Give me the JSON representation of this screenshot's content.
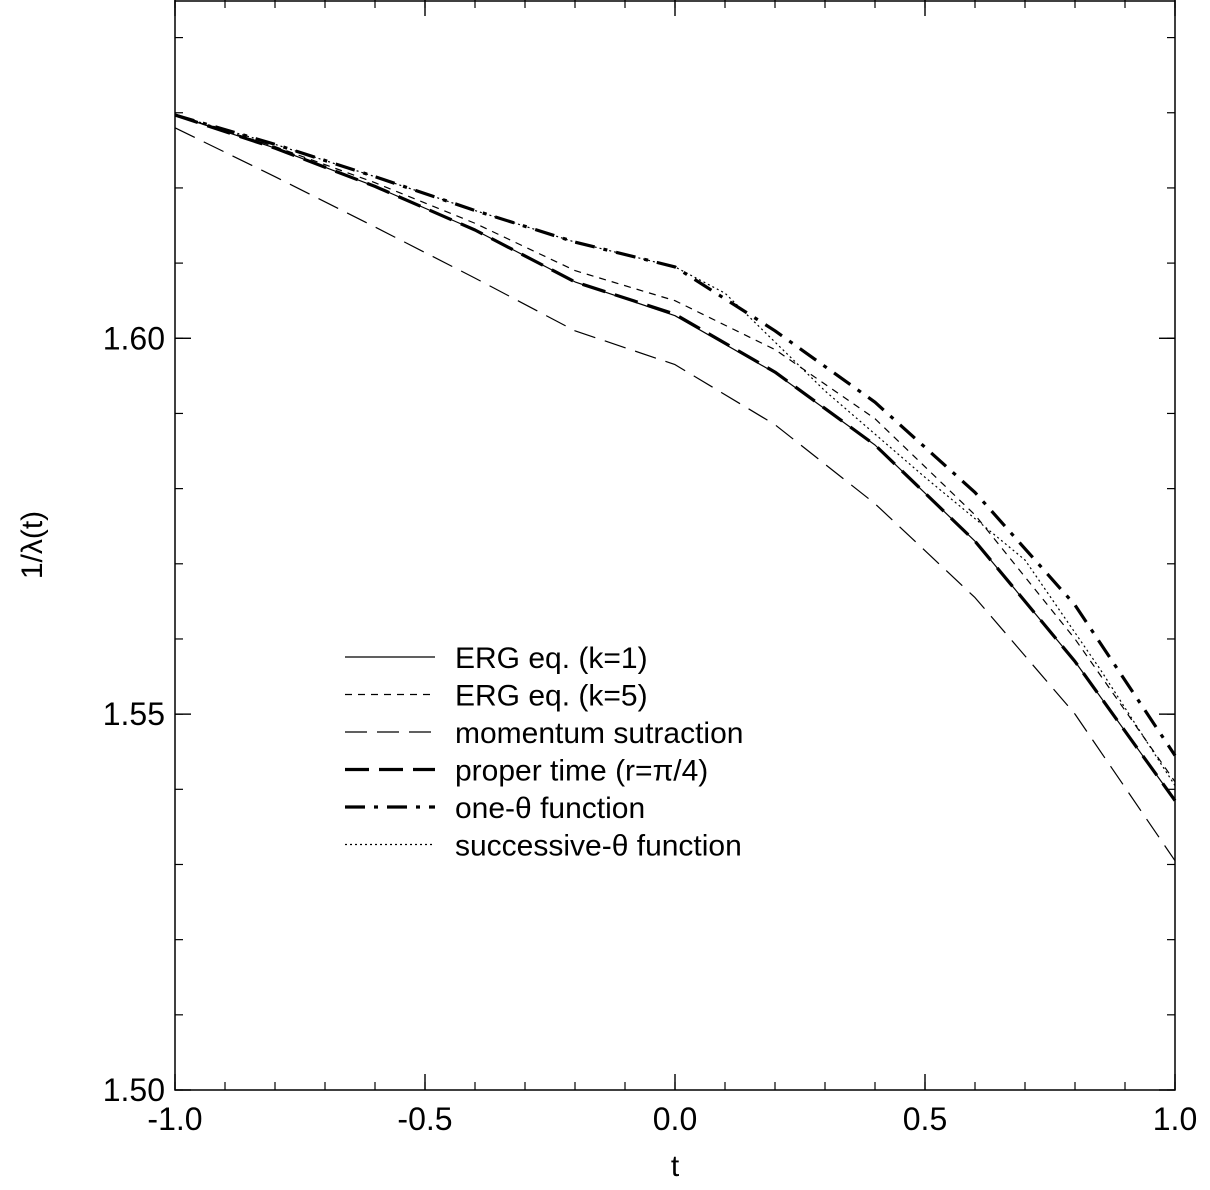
{
  "chart_data": {
    "type": "line",
    "xlabel": "t",
    "ylabel": "1/λ(t)",
    "xlim": [
      -1.0,
      1.0
    ],
    "ylim": [
      1.5,
      1.645
    ],
    "x_major_ticks": [
      -1.0,
      -0.5,
      0.0,
      0.5,
      1.0
    ],
    "x_tick_labels": [
      "-1.0",
      "-0.5",
      "0.0",
      "0.5",
      "1.0"
    ],
    "x_minor_step": 0.1,
    "y_major_ticks": [
      1.5,
      1.55,
      1.6
    ],
    "y_tick_labels": [
      "1.50",
      "1.55",
      "1.60"
    ],
    "y_minor_step": 0.01,
    "grid": false,
    "legend_position": "center-left",
    "series": [
      {
        "name": "ERG eq. (k=1)",
        "style": "solid-thin",
        "x": [
          -1.0,
          -0.8,
          -0.6,
          -0.4,
          -0.2,
          0.0,
          0.2,
          0.4,
          0.6,
          0.8,
          1.0
        ],
        "y": [
          1.6297,
          1.6253,
          1.6202,
          1.6144,
          1.6075,
          1.603,
          1.5954,
          1.5858,
          1.573,
          1.557,
          1.5385
        ]
      },
      {
        "name": "ERG eq. (k=5)",
        "style": "short-dash",
        "x": [
          -1.0,
          -0.8,
          -0.6,
          -0.4,
          -0.2,
          0.0,
          0.2,
          0.4,
          0.6,
          0.8,
          1.0
        ],
        "y": [
          1.6297,
          1.6255,
          1.6207,
          1.6153,
          1.609,
          1.605,
          1.5985,
          1.5893,
          1.5765,
          1.56,
          1.541
        ]
      },
      {
        "name": "momentum sutraction",
        "style": "long-dash-thin",
        "x": [
          -1.0,
          -0.8,
          -0.6,
          -0.4,
          -0.2,
          0.0,
          0.2,
          0.4,
          0.6,
          0.8,
          1.0
        ],
        "y": [
          1.628,
          1.6215,
          1.6148,
          1.608,
          1.601,
          1.5965,
          1.5885,
          1.578,
          1.5655,
          1.55,
          1.5305
        ]
      },
      {
        "name": "proper time (r=π/4)",
        "style": "long-dash-thick",
        "x": [
          -1.0,
          -0.8,
          -0.6,
          -0.4,
          -0.2,
          0.0,
          0.2,
          0.4,
          0.6,
          0.8,
          1.0
        ],
        "y": [
          1.6297,
          1.6253,
          1.6202,
          1.6144,
          1.6075,
          1.6032,
          1.5955,
          1.5858,
          1.573,
          1.557,
          1.5385
        ]
      },
      {
        "name": "one-θ function",
        "style": "dash-dot-thick",
        "x": [
          -1.0,
          -0.8,
          -0.6,
          -0.4,
          -0.2,
          0.0,
          0.2,
          0.4,
          0.6,
          0.8,
          1.0
        ],
        "y": [
          1.6297,
          1.6258,
          1.6215,
          1.617,
          1.6128,
          1.6095,
          1.601,
          1.5915,
          1.5795,
          1.5645,
          1.5445
        ]
      },
      {
        "name": "successive-θ function",
        "style": "dotted",
        "x": [
          -1.0,
          -0.8,
          -0.6,
          -0.4,
          -0.2,
          0.0,
          0.1,
          0.3,
          0.5,
          0.7,
          0.85,
          1.0
        ],
        "y": [
          1.6297,
          1.6258,
          1.6215,
          1.617,
          1.6128,
          1.6095,
          1.606,
          1.593,
          1.5815,
          1.5705,
          1.556,
          1.5405
        ]
      }
    ]
  }
}
